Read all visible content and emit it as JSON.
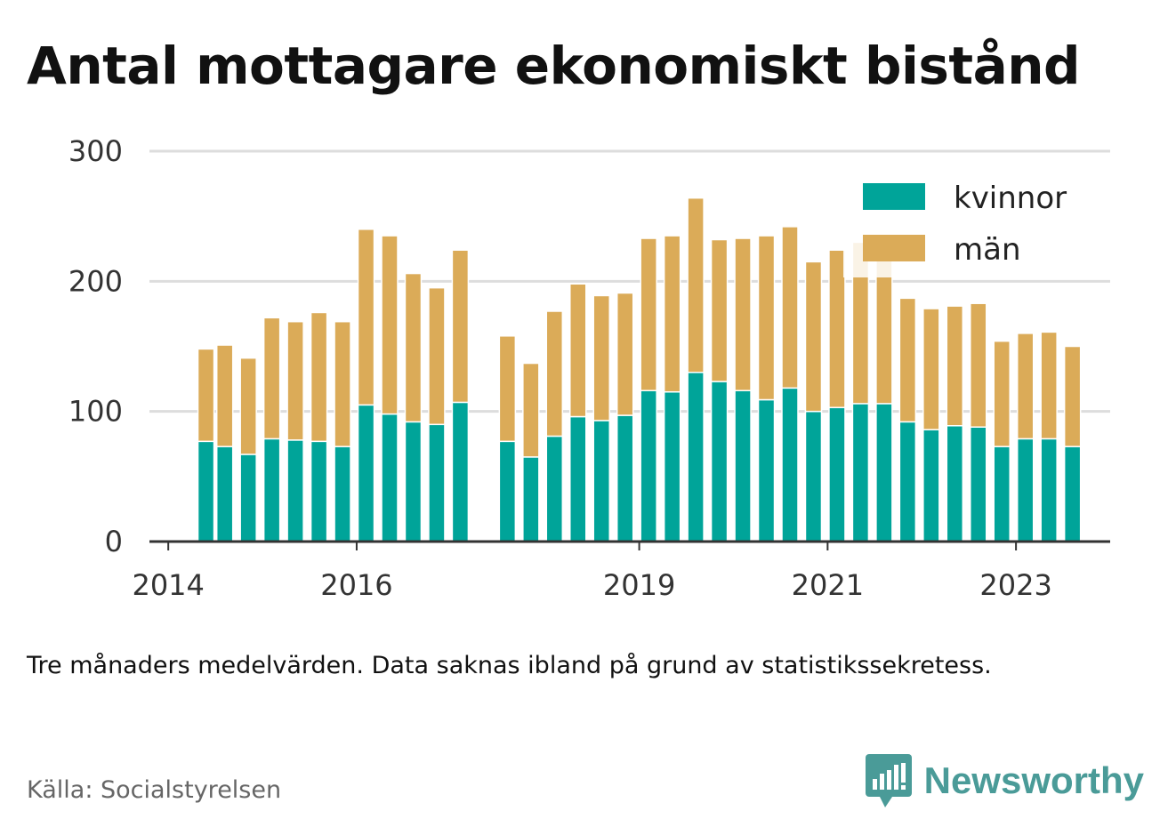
{
  "title": "Antal mottagare ekonomiskt bistånd",
  "note": "Tre månaders medelvärden. Data saknas ibland på grund av statistikssekretess.",
  "source": "Källa: Socialstyrelsen",
  "brand": {
    "name": "Newsworthy",
    "icon": "newsworthy-logo-icon",
    "color": "#4a9b98"
  },
  "colors": {
    "kvinnor": "#00a499",
    "man": "#dbab58",
    "grid": "#dddddd",
    "axis": "#333333"
  },
  "chart_data": {
    "type": "bar",
    "stacked": true,
    "title": "Antal mottagare ekonomiskt bistånd",
    "xlabel": "",
    "ylabel": "",
    "ylim": [
      0,
      300
    ],
    "yticks": [
      0,
      100,
      200,
      300
    ],
    "xlim": [
      2013.8,
      2024.0
    ],
    "xticks": [
      2014,
      2016,
      2019,
      2021,
      2023
    ],
    "grid": true,
    "legend_position": "top-right",
    "x": [
      2014.4,
      2014.6,
      2014.85,
      2015.1,
      2015.35,
      2015.6,
      2015.85,
      2016.1,
      2016.35,
      2016.6,
      2016.85,
      2017.1,
      2017.6,
      2017.85,
      2018.1,
      2018.35,
      2018.6,
      2018.85,
      2019.1,
      2019.35,
      2019.6,
      2019.85,
      2020.1,
      2020.35,
      2020.6,
      2020.85,
      2021.1,
      2021.35,
      2021.6,
      2021.85,
      2022.1,
      2022.35,
      2022.6,
      2022.85,
      2023.1,
      2023.35,
      2023.6
    ],
    "series": [
      {
        "name": "kvinnor",
        "color": "#00a499",
        "values": [
          77,
          73,
          67,
          79,
          78,
          77,
          73,
          105,
          98,
          92,
          90,
          107,
          77,
          65,
          81,
          96,
          93,
          97,
          116,
          115,
          130,
          123,
          116,
          109,
          118,
          100,
          103,
          106,
          106,
          92,
          86,
          89,
          88,
          73,
          79,
          79,
          73
        ]
      },
      {
        "name": "män",
        "color": "#dbab58",
        "values": [
          71,
          78,
          74,
          93,
          91,
          99,
          96,
          135,
          137,
          114,
          105,
          117,
          81,
          72,
          96,
          102,
          96,
          94,
          117,
          120,
          134,
          109,
          117,
          126,
          124,
          115,
          121,
          124,
          118,
          95,
          93,
          92,
          95,
          81,
          81,
          82,
          77
        ]
      }
    ]
  }
}
